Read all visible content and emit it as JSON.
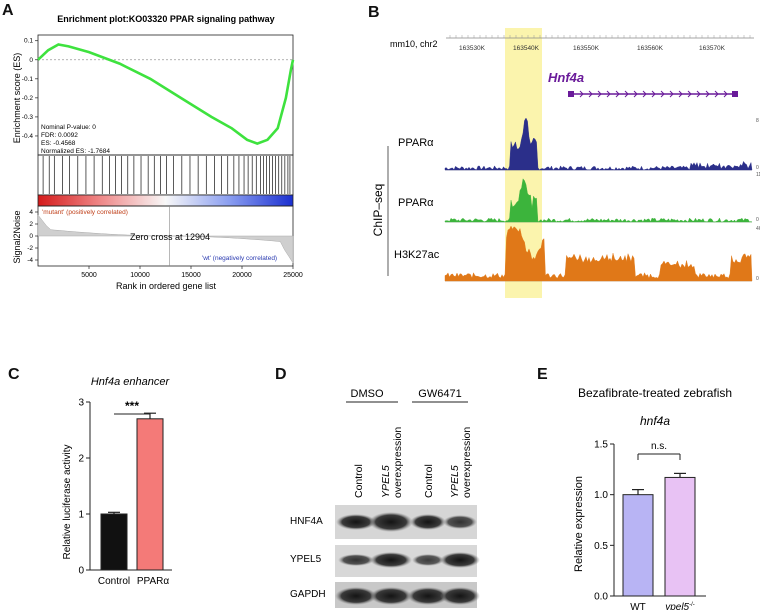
{
  "panels": {
    "A": {
      "letter": "A",
      "title": "Enrichment plot:KO03320 PPAR signaling pathway",
      "es_label": "Enrichment score (ES)",
      "stats": [
        "Nominal P-value: 0",
        "FDR: 0.0092",
        "ES: -0.4568",
        "Normalized ES: -1.7684"
      ],
      "es_ticks": [
        "0.1",
        "0",
        "-0.1",
        "-0.2",
        "-0.3",
        "-0.4"
      ],
      "mutant_label": "'mutant' (positively correlated)",
      "wt_label": "'wt' (negatively correlated)",
      "zero_cross": "Zero cross at 12904",
      "s2n_label": "Signal2Noise",
      "s2n_ticks": [
        "4",
        "2",
        "0",
        "-2",
        "-4"
      ],
      "x_ticks": [
        "5000",
        "10000",
        "15000",
        "20000",
        "25000"
      ],
      "xlabel": "Rank in ordered gene list",
      "zero_cross_x": 12904,
      "x_max": 25000,
      "es_min": -0.4568,
      "es_curve": [
        [
          0,
          0.0
        ],
        [
          1000,
          0.05
        ],
        [
          2000,
          0.08
        ],
        [
          3000,
          0.07
        ],
        [
          5000,
          0.04
        ],
        [
          8000,
          -0.02
        ],
        [
          11000,
          -0.1
        ],
        [
          14000,
          -0.2
        ],
        [
          17000,
          -0.3
        ],
        [
          19000,
          -0.36
        ],
        [
          20500,
          -0.42
        ],
        [
          21500,
          -0.44
        ],
        [
          22500,
          -0.42
        ],
        [
          23500,
          -0.36
        ],
        [
          24300,
          -0.2
        ],
        [
          24800,
          -0.05
        ],
        [
          25000,
          0.0
        ]
      ],
      "hit_ranks": [
        500,
        1100,
        1600,
        2400,
        3100,
        3900,
        4700,
        5500,
        6300,
        7000,
        7600,
        8200,
        8800,
        9400,
        10100,
        10800,
        11400,
        12000,
        12600,
        13300,
        14100,
        14900,
        15700,
        16500,
        17300,
        18000,
        18600,
        19200,
        19700,
        20200,
        20600,
        21000,
        21400,
        21800,
        22100,
        22400,
        22700,
        23000,
        23300,
        23600,
        23900,
        24200,
        24500,
        24700
      ]
    },
    "B": {
      "letter": "B",
      "genome": "mm10, chr2",
      "coords": [
        "163530K",
        "163540K",
        "163550K",
        "163560K",
        "163570K"
      ],
      "gene": "Hnf4a",
      "chipseq_label": "ChIP–seq",
      "tracks": [
        {
          "name": "PPARα",
          "color": "#2b2f8a",
          "max": "8",
          "min": "0"
        },
        {
          "name": "PPARα",
          "color": "#3cb43c",
          "max": "11",
          "min": "0"
        },
        {
          "name": "H3K27ac",
          "color": "#e07818",
          "max": "46",
          "min": "0"
        }
      ]
    },
    "C": {
      "letter": "C",
      "title": "Hnf4a enhancer",
      "ylabel": "Relative luciferase activity",
      "significance": "***",
      "y_ticks": [
        "0",
        "1",
        "2",
        "3"
      ]
    },
    "D": {
      "letter": "D",
      "groups": [
        "DMSO",
        "GW6471"
      ],
      "lanes": [
        {
          "gene": "",
          "text": "Control"
        },
        {
          "gene": "YPEL5",
          "text": "overexpression"
        },
        {
          "gene": "",
          "text": "Control"
        },
        {
          "gene": "YPEL5",
          "text": "overexpression"
        }
      ],
      "blots": [
        "HNF4A",
        "YPEL5",
        "GAPDH"
      ]
    },
    "E": {
      "letter": "E",
      "title": "Bezafibrate-treated zebrafish",
      "subtitle": "hnf4a",
      "ylabel": "Relative expression",
      "significance": "n.s.",
      "y_ticks": [
        "0.0",
        "0.5",
        "1.0",
        "1.5"
      ],
      "gene_label": "ypel5",
      "gene_sup": "-/-"
    }
  },
  "chart_data": [
    {
      "type": "bar",
      "title": "Hnf4a enhancer",
      "categories": [
        "Control",
        "PPARα"
      ],
      "values": [
        1.0,
        2.7
      ],
      "errors": [
        0.03,
        0.1
      ],
      "colors": [
        "#111111",
        "#f47a78"
      ],
      "ylabel": "Relative luciferase activity",
      "ylim": [
        0,
        3
      ]
    },
    {
      "type": "bar",
      "title": "Bezafibrate-treated zebrafish",
      "categories": [
        "WT",
        "ypel5-/-"
      ],
      "values": [
        1.0,
        1.17
      ],
      "errors": [
        0.05,
        0.04
      ],
      "colors": [
        "#b8b4f4",
        "#e8c2f4"
      ],
      "ylabel": "Relative expression",
      "ylim": [
        0,
        1.5
      ]
    }
  ]
}
